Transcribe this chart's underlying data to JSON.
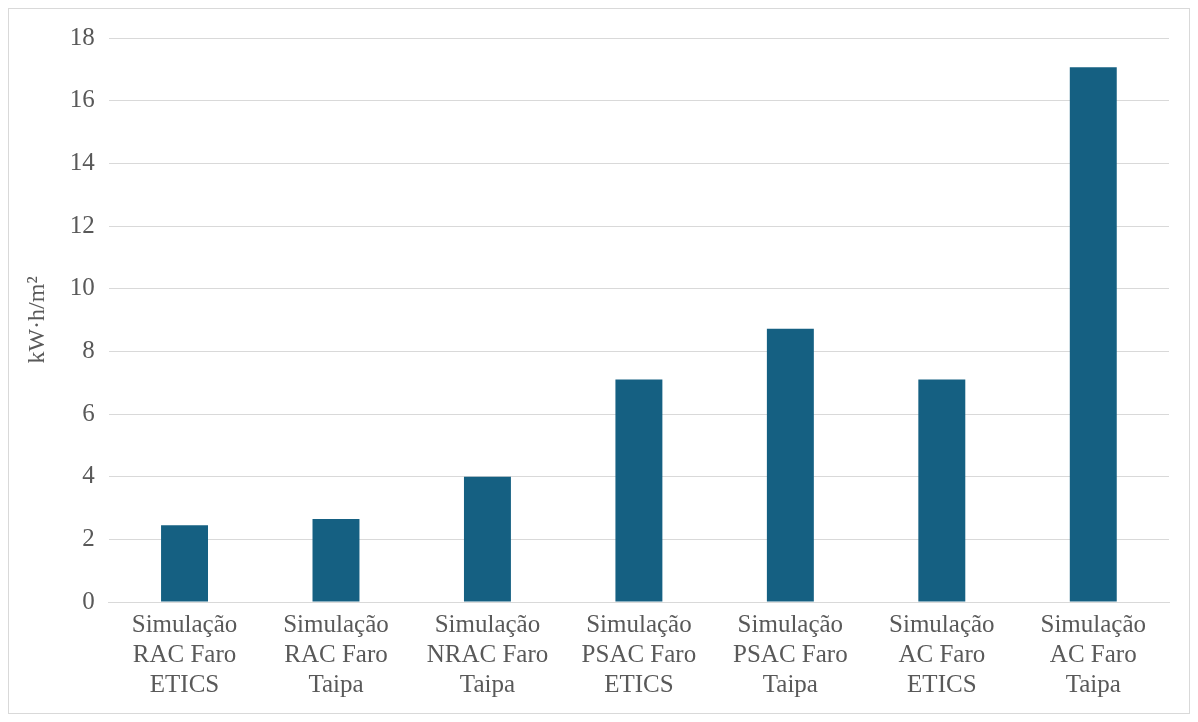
{
  "chart_data": {
    "type": "bar",
    "ylabel": "kW·h/m²",
    "categories": [
      "Simulação RAC Faro ETICS",
      "Simulação RAC Faro Taipa",
      "Simulação NRAC Faro Taipa",
      "Simulação PSAC Faro ETICS",
      "Simulação PSAC Faro Taipa",
      "Simulação AC Faro ETICS",
      "Simulação AC Faro Taipa"
    ],
    "values": [
      2.45,
      2.65,
      4.0,
      7.1,
      8.72,
      7.1,
      17.07
    ],
    "color": "#156082",
    "ylim": [
      0,
      18
    ],
    "yticks": [
      0,
      2,
      4,
      6,
      8,
      10,
      12,
      14,
      16,
      18
    ],
    "grid": "y",
    "legend": false
  }
}
